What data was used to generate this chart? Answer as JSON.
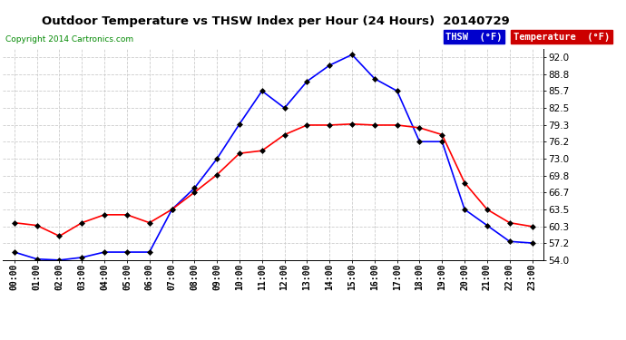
{
  "title": "Outdoor Temperature vs THSW Index per Hour (24 Hours)  20140729",
  "copyright": "Copyright 2014 Cartronics.com",
  "background_color": "#ffffff",
  "grid_color": "#cccccc",
  "hours": [
    "00:00",
    "01:00",
    "02:00",
    "03:00",
    "04:00",
    "05:00",
    "06:00",
    "07:00",
    "08:00",
    "09:00",
    "10:00",
    "11:00",
    "12:00",
    "13:00",
    "14:00",
    "15:00",
    "16:00",
    "17:00",
    "18:00",
    "19:00",
    "20:00",
    "21:00",
    "22:00",
    "23:00"
  ],
  "thsw": [
    55.5,
    54.2,
    54.0,
    54.5,
    55.5,
    55.5,
    55.5,
    63.5,
    67.5,
    73.0,
    79.5,
    85.7,
    82.5,
    87.5,
    90.5,
    92.5,
    88.0,
    85.7,
    76.2,
    76.2,
    63.5,
    60.5,
    57.5,
    57.2
  ],
  "temperature": [
    61.0,
    60.5,
    58.5,
    61.0,
    62.5,
    62.5,
    61.0,
    63.5,
    66.7,
    70.0,
    74.0,
    74.5,
    77.5,
    79.3,
    79.3,
    79.5,
    79.3,
    79.3,
    78.8,
    77.5,
    68.5,
    63.5,
    61.0,
    60.3
  ],
  "thsw_color": "#0000ff",
  "temp_color": "#ff0000",
  "marker_color": "#000000",
  "yticks": [
    54.0,
    57.2,
    60.3,
    63.5,
    66.7,
    69.8,
    73.0,
    76.2,
    79.3,
    82.5,
    85.7,
    88.8,
    92.0
  ],
  "ymin": 54.0,
  "ymax": 93.5,
  "legend_thsw_bg": "#0000cc",
  "legend_temp_bg": "#cc0000",
  "legend_thsw_text": "THSW  (°F)",
  "legend_temp_text": "Temperature  (°F)"
}
